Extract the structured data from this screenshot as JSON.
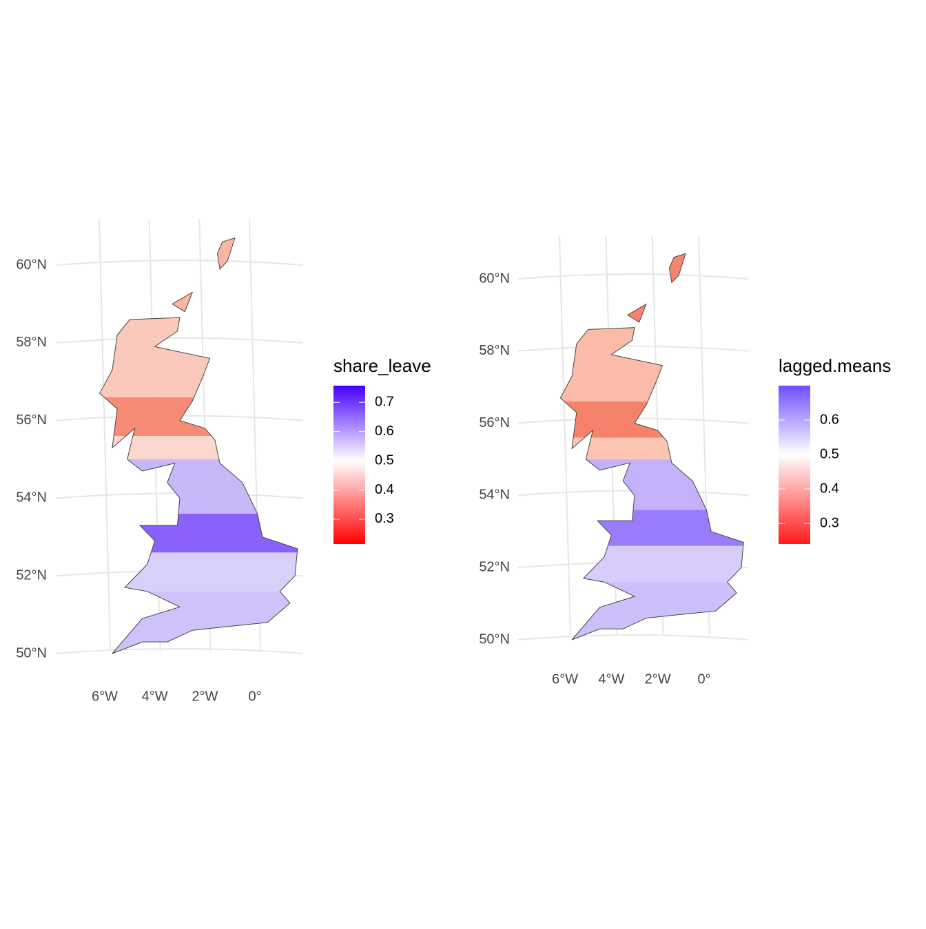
{
  "maps": [
    {
      "legend": {
        "title": "share_leave",
        "ticks": [
          0.3,
          0.4,
          0.5,
          0.6,
          0.7
        ],
        "range": [
          0.215,
          0.757
        ],
        "colors": [
          "#ff0000",
          "#ffffff",
          "#4400ff"
        ]
      },
      "lat_ticks": [
        {
          "value": 60,
          "label": "60°N"
        },
        {
          "value": 58,
          "label": "58°N"
        },
        {
          "value": 56,
          "label": "56°N"
        },
        {
          "value": 54,
          "label": "54°N"
        },
        {
          "value": 52,
          "label": "52°N"
        },
        {
          "value": 50,
          "label": "50°N"
        }
      ],
      "lon_ticks": [
        {
          "value": -6,
          "label": "6°W"
        },
        {
          "value": -4,
          "label": "4°W"
        },
        {
          "value": -2,
          "label": "2°W"
        },
        {
          "value": 0,
          "label": "0°"
        }
      ]
    },
    {
      "legend": {
        "title": "lagged.means",
        "ticks": [
          0.3,
          0.4,
          0.5,
          0.6
        ],
        "range": [
          0.24,
          0.7
        ],
        "colors": [
          "#ff1a1a",
          "#ffffff",
          "#6f4dff"
        ]
      },
      "lat_ticks": [
        {
          "value": 60,
          "label": "60°N"
        },
        {
          "value": 58,
          "label": "58°N"
        },
        {
          "value": 56,
          "label": "56°N"
        },
        {
          "value": 54,
          "label": "54°N"
        },
        {
          "value": 52,
          "label": "52°N"
        },
        {
          "value": 50,
          "label": "50°N"
        }
      ],
      "lon_ticks": [
        {
          "value": -6,
          "label": "6°W"
        },
        {
          "value": -4,
          "label": "4°W"
        },
        {
          "value": -2,
          "label": "2°W"
        },
        {
          "value": 0,
          "label": "0°"
        }
      ]
    }
  ]
}
